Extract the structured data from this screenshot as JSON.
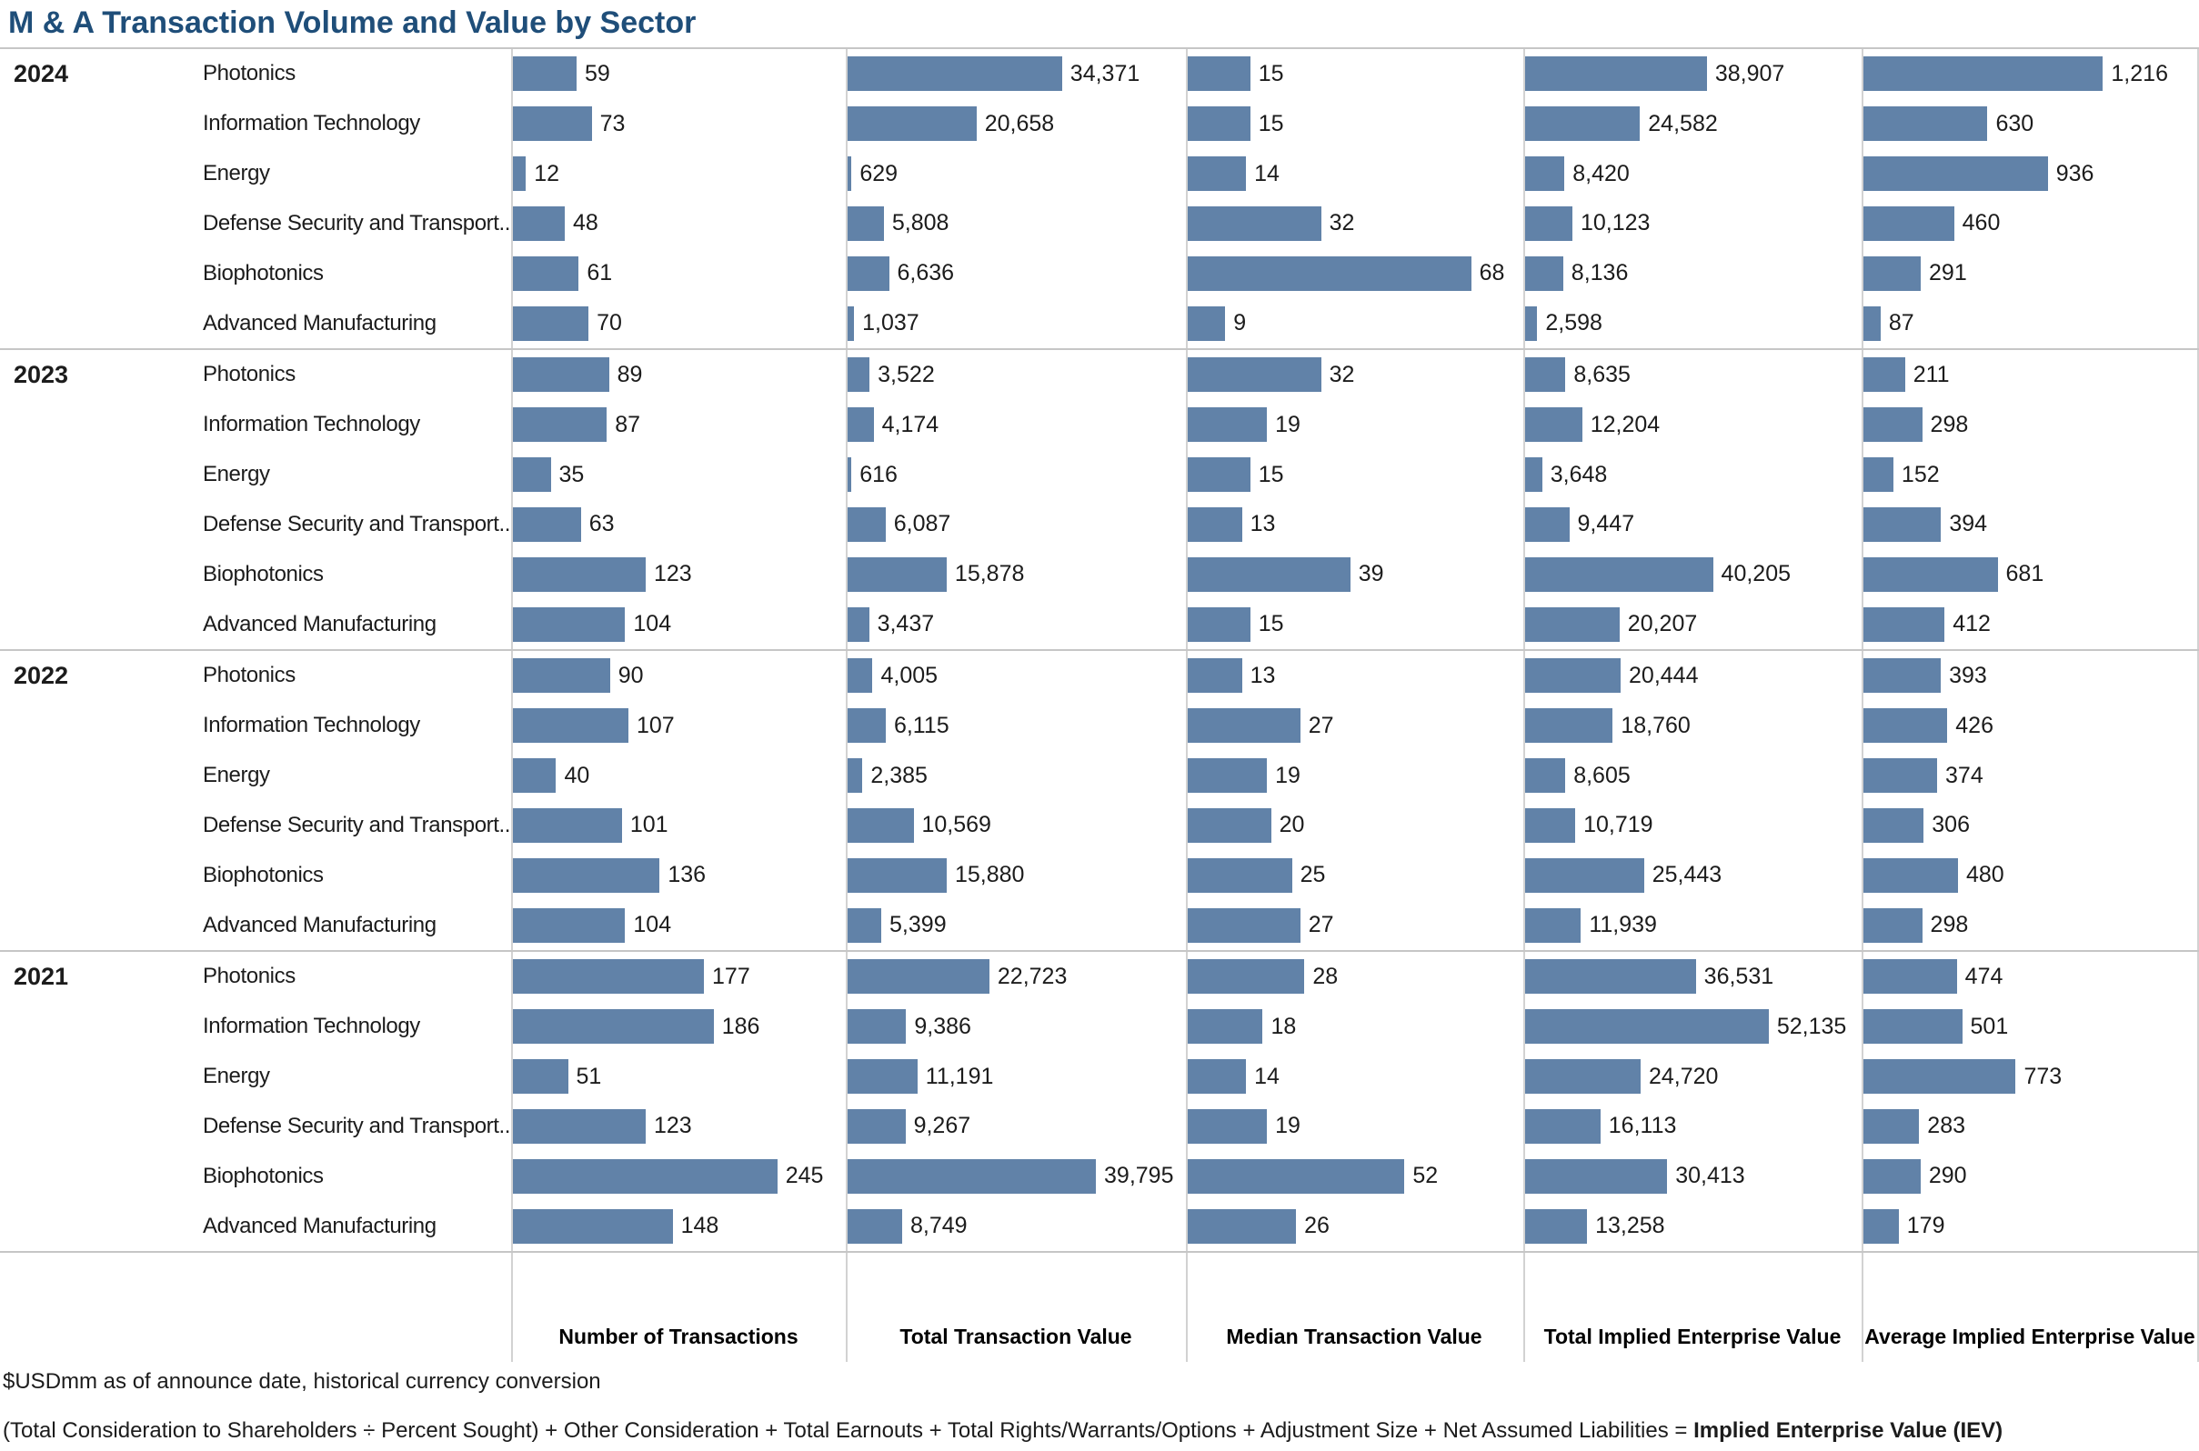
{
  "title": "M & A Transaction Volume and Value by Sector",
  "footnotes": {
    "line1": "$USDmm as of announce date, historical currency conversion",
    "line2_regular": "(Total Consideration to Shareholders ÷ Percent Sought) + Other Consideration + Total Earnouts + Total Rights/Warrants/Options + Adjustment Size + Net Assumed Liabilities = ",
    "line2_bold": "Implied Enterprise Value (IEV)"
  },
  "colors": {
    "bar": "#6182a8",
    "title": "#1f4e79",
    "gridline": "#d2d2d2",
    "groupline": "#c6c6c6"
  },
  "chart_data": {
    "type": "bar",
    "orientation": "horizontal",
    "title": "M & A Transaction Volume and Value by Sector",
    "columns": [
      "Number of Transactions",
      "Total Transaction Value",
      "Median Transaction Value",
      "Total Implied Enterprise Value",
      "Average Implied Enterprise Value"
    ],
    "column_axis_max": [
      245,
      39795,
      68,
      52135,
      1216
    ],
    "sectors": [
      "Photonics",
      "Information Technology",
      "Energy",
      "Defense Security and Transport..",
      "Biophotonics",
      "Advanced Manufacturing"
    ],
    "groups": [
      {
        "year": "2024",
        "rows": [
          {
            "sector": "Photonics",
            "values": [
              59,
              34371,
              15,
              38907,
              1216
            ],
            "labels": [
              "59",
              "34,371",
              "15",
              "38,907",
              "1,216"
            ]
          },
          {
            "sector": "Information Technology",
            "values": [
              73,
              20658,
              15,
              24582,
              630
            ],
            "labels": [
              "73",
              "20,658",
              "15",
              "24,582",
              "630"
            ]
          },
          {
            "sector": "Energy",
            "values": [
              12,
              629,
              14,
              8420,
              936
            ],
            "labels": [
              "12",
              "629",
              "14",
              "8,420",
              "936"
            ]
          },
          {
            "sector": "Defense Security and Transport..",
            "values": [
              48,
              5808,
              32,
              10123,
              460
            ],
            "labels": [
              "48",
              "5,808",
              "32",
              "10,123",
              "460"
            ]
          },
          {
            "sector": "Biophotonics",
            "values": [
              61,
              6636,
              68,
              8136,
              291
            ],
            "labels": [
              "61",
              "6,636",
              "68",
              "8,136",
              "291"
            ]
          },
          {
            "sector": "Advanced Manufacturing",
            "values": [
              70,
              1037,
              9,
              2598,
              87
            ],
            "labels": [
              "70",
              "1,037",
              "9",
              "2,598",
              "87"
            ]
          }
        ]
      },
      {
        "year": "2023",
        "rows": [
          {
            "sector": "Photonics",
            "values": [
              89,
              3522,
              32,
              8635,
              211
            ],
            "labels": [
              "89",
              "3,522",
              "32",
              "8,635",
              "211"
            ]
          },
          {
            "sector": "Information Technology",
            "values": [
              87,
              4174,
              19,
              12204,
              298
            ],
            "labels": [
              "87",
              "4,174",
              "19",
              "12,204",
              "298"
            ]
          },
          {
            "sector": "Energy",
            "values": [
              35,
              616,
              15,
              3648,
              152
            ],
            "labels": [
              "35",
              "616",
              "15",
              "3,648",
              "152"
            ]
          },
          {
            "sector": "Defense Security and Transport..",
            "values": [
              63,
              6087,
              13,
              9447,
              394
            ],
            "labels": [
              "63",
              "6,087",
              "13",
              "9,447",
              "394"
            ]
          },
          {
            "sector": "Biophotonics",
            "values": [
              123,
              15878,
              39,
              40205,
              681
            ],
            "labels": [
              "123",
              "15,878",
              "39",
              "40,205",
              "681"
            ]
          },
          {
            "sector": "Advanced Manufacturing",
            "values": [
              104,
              3437,
              15,
              20207,
              412
            ],
            "labels": [
              "104",
              "3,437",
              "15",
              "20,207",
              "412"
            ]
          }
        ]
      },
      {
        "year": "2022",
        "rows": [
          {
            "sector": "Photonics",
            "values": [
              90,
              4005,
              13,
              20444,
              393
            ],
            "labels": [
              "90",
              "4,005",
              "13",
              "20,444",
              "393"
            ]
          },
          {
            "sector": "Information Technology",
            "values": [
              107,
              6115,
              27,
              18760,
              426
            ],
            "labels": [
              "107",
              "6,115",
              "27",
              "18,760",
              "426"
            ]
          },
          {
            "sector": "Energy",
            "values": [
              40,
              2385,
              19,
              8605,
              374
            ],
            "labels": [
              "40",
              "2,385",
              "19",
              "8,605",
              "374"
            ]
          },
          {
            "sector": "Defense Security and Transport..",
            "values": [
              101,
              10569,
              20,
              10719,
              306
            ],
            "labels": [
              "101",
              "10,569",
              "20",
              "10,719",
              "306"
            ]
          },
          {
            "sector": "Biophotonics",
            "values": [
              136,
              15880,
              25,
              25443,
              480
            ],
            "labels": [
              "136",
              "15,880",
              "25",
              "25,443",
              "480"
            ]
          },
          {
            "sector": "Advanced Manufacturing",
            "values": [
              104,
              5399,
              27,
              11939,
              298
            ],
            "labels": [
              "104",
              "5,399",
              "27",
              "11,939",
              "298"
            ]
          }
        ]
      },
      {
        "year": "2021",
        "rows": [
          {
            "sector": "Photonics",
            "values": [
              177,
              22723,
              28,
              36531,
              474
            ],
            "labels": [
              "177",
              "22,723",
              "28",
              "36,531",
              "474"
            ]
          },
          {
            "sector": "Information Technology",
            "values": [
              186,
              9386,
              18,
              52135,
              501
            ],
            "labels": [
              "186",
              "9,386",
              "18",
              "52,135",
              "501"
            ]
          },
          {
            "sector": "Energy",
            "values": [
              51,
              11191,
              14,
              24720,
              773
            ],
            "labels": [
              "51",
              "11,191",
              "14",
              "24,720",
              "773"
            ]
          },
          {
            "sector": "Defense Security and Transport..",
            "values": [
              123,
              9267,
              19,
              16113,
              283
            ],
            "labels": [
              "123",
              "9,267",
              "19",
              "16,113",
              "283"
            ]
          },
          {
            "sector": "Biophotonics",
            "values": [
              245,
              39795,
              52,
              30413,
              290
            ],
            "labels": [
              "245",
              "39,795",
              "52",
              "30,413",
              "290"
            ]
          },
          {
            "sector": "Advanced Manufacturing",
            "values": [
              148,
              8749,
              26,
              13258,
              179
            ],
            "labels": [
              "148",
              "8,749",
              "26",
              "13,258",
              "179"
            ]
          }
        ]
      }
    ]
  }
}
